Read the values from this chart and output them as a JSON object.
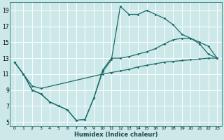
{
  "xlabel": "Humidex (Indice chaleur)",
  "bg_color": "#cce8e8",
  "grid_color": "#ffffff",
  "line_color": "#1a6b6b",
  "xlim": [
    -0.5,
    23.5
  ],
  "ylim": [
    4.5,
    20.0
  ],
  "xticks": [
    0,
    1,
    2,
    3,
    4,
    5,
    6,
    7,
    8,
    9,
    10,
    11,
    12,
    13,
    14,
    15,
    16,
    17,
    18,
    19,
    20,
    21,
    22,
    23
  ],
  "yticks": [
    5,
    7,
    9,
    11,
    13,
    15,
    17,
    19
  ],
  "line1_x": [
    0,
    1,
    2,
    3,
    4,
    5,
    6,
    7,
    8,
    9,
    10,
    11,
    12,
    13,
    14,
    15,
    16,
    17,
    18,
    19,
    20,
    21,
    22,
    23
  ],
  "line1_y": [
    12.5,
    11.0,
    9.0,
    8.5,
    7.5,
    7.0,
    6.5,
    5.2,
    5.3,
    8.0,
    11.3,
    12.8,
    19.5,
    18.5,
    18.5,
    19.0,
    18.5,
    18.0,
    17.2,
    16.0,
    15.5,
    15.0,
    14.5,
    13.0
  ],
  "line2_x": [
    0,
    1,
    2,
    3,
    4,
    5,
    6,
    7,
    8,
    9,
    10,
    11,
    12,
    13,
    14,
    15,
    16,
    17,
    18,
    19,
    20,
    21,
    22,
    23
  ],
  "line2_y": [
    12.5,
    11.0,
    9.0,
    8.5,
    7.5,
    7.0,
    6.5,
    5.2,
    5.3,
    8.0,
    11.5,
    13.0,
    13.0,
    13.2,
    13.5,
    13.8,
    14.2,
    14.8,
    15.3,
    15.5,
    15.5,
    14.8,
    13.5,
    13.0
  ],
  "line3_x": [
    0,
    1,
    2,
    3,
    10,
    11,
    12,
    13,
    14,
    15,
    16,
    17,
    18,
    19,
    20,
    21,
    22,
    23
  ],
  "line3_y": [
    12.5,
    11.0,
    9.5,
    9.2,
    11.0,
    11.2,
    11.4,
    11.6,
    11.9,
    12.1,
    12.3,
    12.5,
    12.6,
    12.7,
    12.8,
    12.9,
    13.0,
    13.0
  ]
}
